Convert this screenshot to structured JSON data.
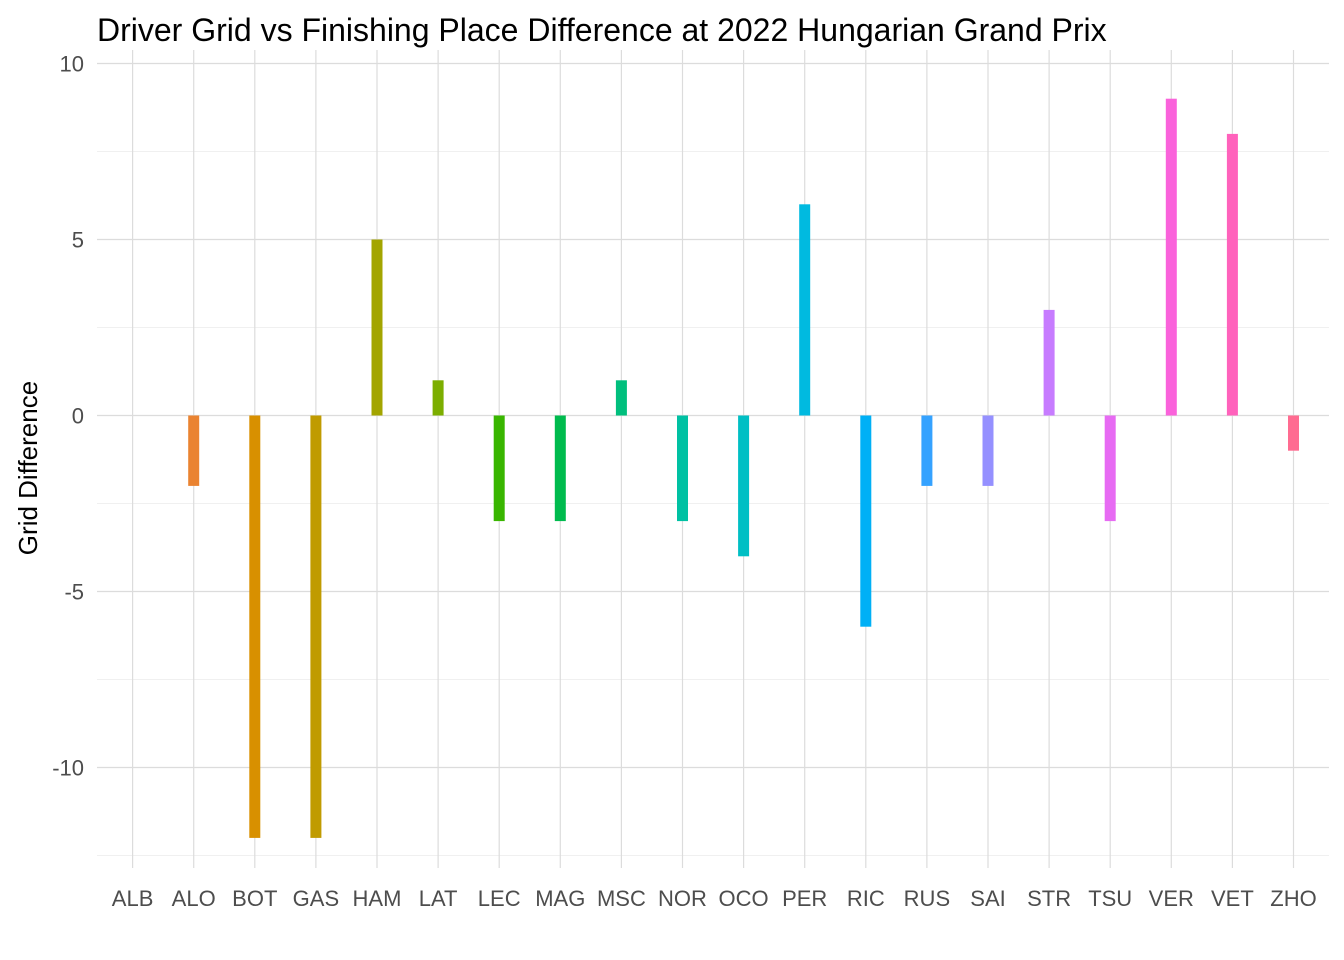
{
  "chart_data": {
    "type": "bar",
    "title": "Driver Grid vs Finishing Place Difference at 2022 Hungarian Grand Prix",
    "xlabel": "",
    "ylabel": "Grid Difference",
    "categories": [
      "ALB",
      "ALO",
      "BOT",
      "GAS",
      "HAM",
      "LAT",
      "LEC",
      "MAG",
      "MSC",
      "NOR",
      "OCO",
      "PER",
      "RIC",
      "RUS",
      "SAI",
      "STR",
      "TSU",
      "VER",
      "VET",
      "ZHO"
    ],
    "values": [
      0,
      -2,
      -12,
      -12,
      5,
      1,
      -3,
      -3,
      1,
      -3,
      -4,
      6,
      -6,
      -2,
      -2,
      3,
      -3,
      9,
      8,
      -1
    ],
    "colors": [
      "#F8766D",
      "#EA8331",
      "#D89000",
      "#C09B00",
      "#A3A500",
      "#7CAE00",
      "#39B600",
      "#00BB4E",
      "#00BF7D",
      "#00C1A3",
      "#00BFC4",
      "#00BAE0",
      "#00B0F6",
      "#35A2FF",
      "#9590FF",
      "#C77CFF",
      "#E76BF3",
      "#FA62DB",
      "#FF62BC",
      "#FF6C91"
    ],
    "yticks": [
      10,
      5,
      0,
      -5,
      -10
    ],
    "ytick_labels": [
      "10",
      "5",
      "0",
      "-5",
      "-10"
    ],
    "ylim": [
      -12.6,
      10
    ],
    "grid": true,
    "legend": "none"
  }
}
